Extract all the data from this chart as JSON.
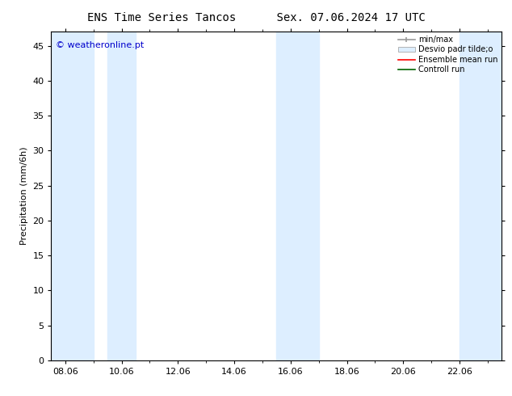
{
  "title_left": "ENS Time Series Tancos",
  "title_right": "Sex. 07.06.2024 17 UTC",
  "ylabel": "Precipitation (mm/6h)",
  "xlabel": "",
  "ylim": [
    0,
    47
  ],
  "yticks": [
    0,
    5,
    10,
    15,
    20,
    25,
    30,
    35,
    40,
    45
  ],
  "xtick_labels": [
    "08.06",
    "10.06",
    "12.06",
    "14.06",
    "16.06",
    "18.06",
    "20.06",
    "22.06"
  ],
  "xtick_positions": [
    8,
    10,
    12,
    14,
    16,
    18,
    20,
    22
  ],
  "xlim": [
    7.5,
    23.5
  ],
  "background_color": "#ffffff",
  "plot_bg_color": "#ffffff",
  "shade_color": "#ddeeff",
  "shade_alpha": 1.0,
  "shaded_bands": [
    [
      7.5,
      9.0
    ],
    [
      9.5,
      10.5
    ],
    [
      15.5,
      17.0
    ],
    [
      22.0,
      23.5
    ]
  ],
  "legend_labels": [
    "min/max",
    "Desvio padr tilde;o",
    "Ensemble mean run",
    "Controll run"
  ],
  "watermark_text": "© weatheronline.pt",
  "watermark_color": "#0000cc",
  "title_fontsize": 10,
  "axis_fontsize": 8,
  "tick_fontsize": 8
}
